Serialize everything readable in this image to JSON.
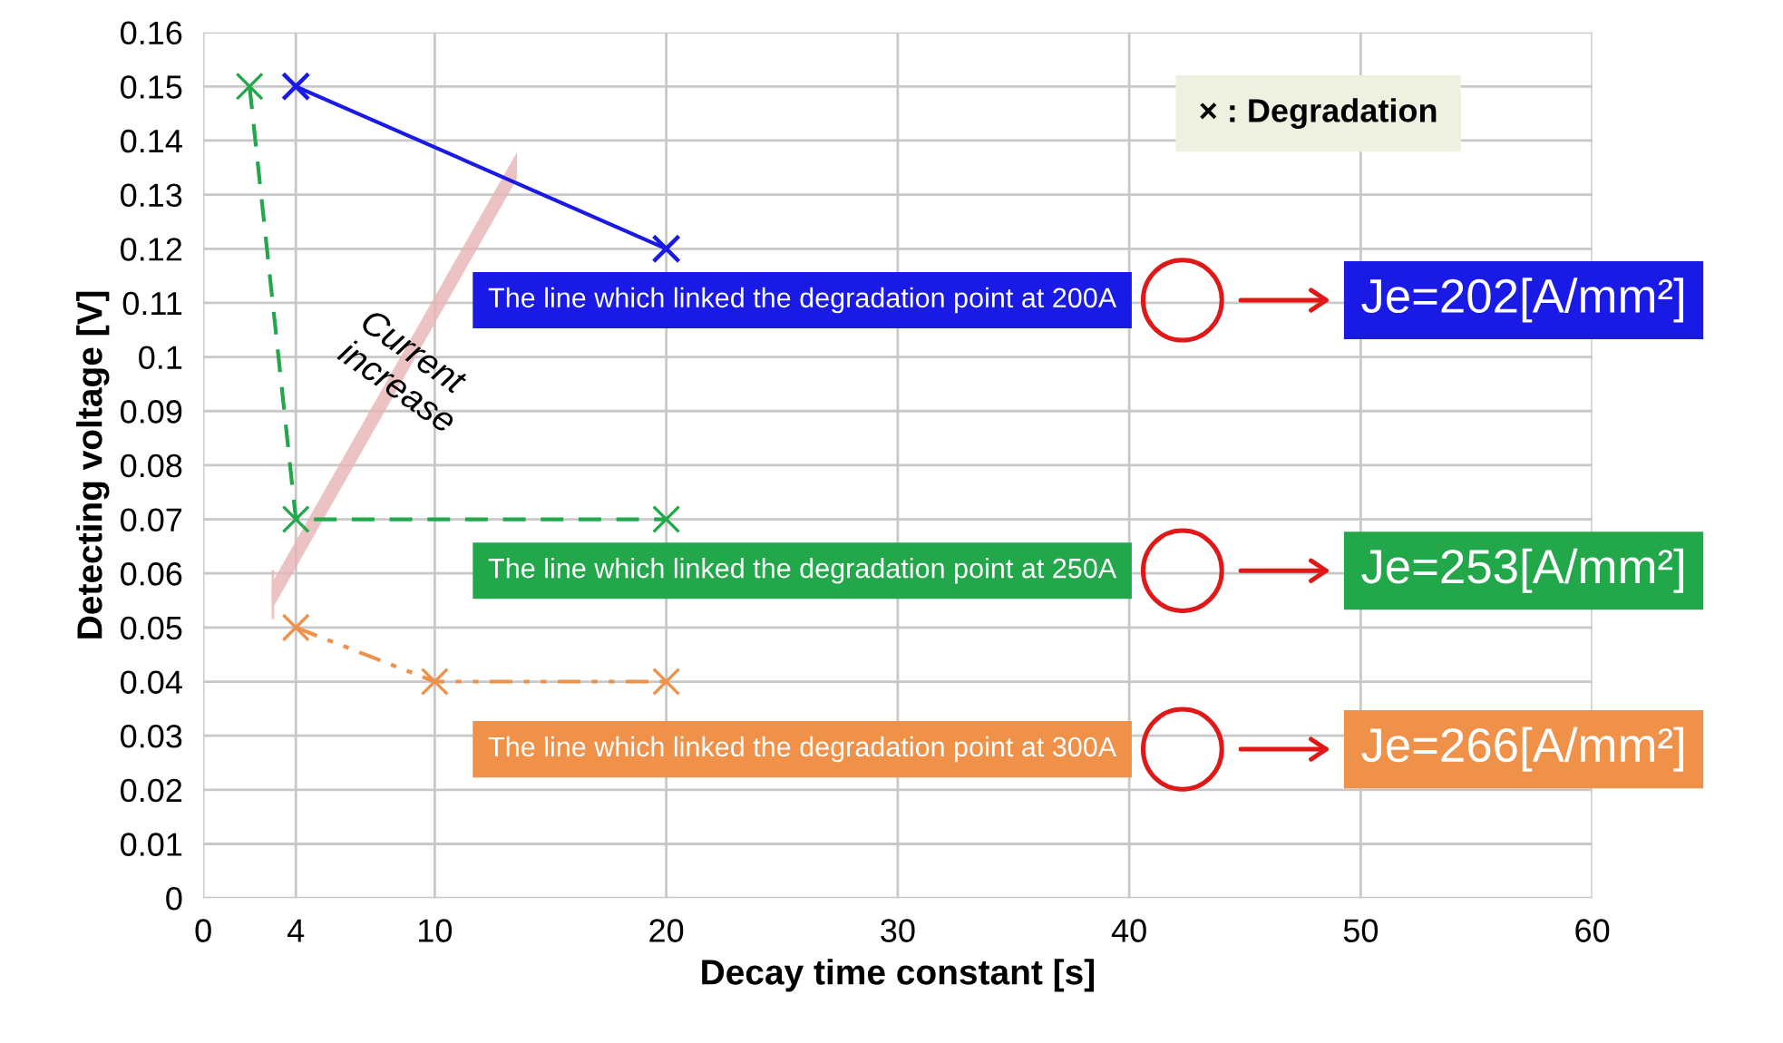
{
  "chart_data": {
    "type": "line",
    "xlabel": "Decay time constant [s]",
    "ylabel": "Detecting voltage [V]",
    "xlim": [
      0,
      60
    ],
    "xticks": [
      0,
      4,
      10,
      20,
      30,
      40,
      50,
      60
    ],
    "ylim": [
      0,
      0.16
    ],
    "yticks": [
      0,
      0.01,
      0.02,
      0.03,
      0.04,
      0.05,
      0.06,
      0.07,
      0.08,
      0.09,
      {
        "value": 0.1,
        "label": "0.1"
      },
      0.11,
      0.12,
      0.13,
      0.14,
      0.15,
      0.16
    ],
    "grid": true,
    "marker": "cross",
    "series": [
      {
        "color": "#1a1ae6",
        "x": [
          4,
          20
        ],
        "values": [
          0.15,
          0.12
        ],
        "line_style": "solid"
      },
      {
        "color": "#22a84a",
        "x": [
          2,
          4,
          20
        ],
        "values": [
          0.15,
          0.07,
          0.07
        ],
        "line_style": "dashed"
      },
      {
        "color": "#f0914a",
        "x": [
          4,
          10,
          20
        ],
        "values": [
          0.05,
          0.04,
          0.04
        ],
        "line_style": "dotted"
      }
    ],
    "annotations": [
      "× : Degradation",
      "Current increase",
      "The line which linked the degradation point at 200A",
      "Je=202[A/mm²]",
      "The line which linked the degradation point at 250A",
      "Je=253[A/mm²]",
      "The line which linked the degradation point at 300A",
      "Je=266[A/mm²]"
    ]
  }
}
